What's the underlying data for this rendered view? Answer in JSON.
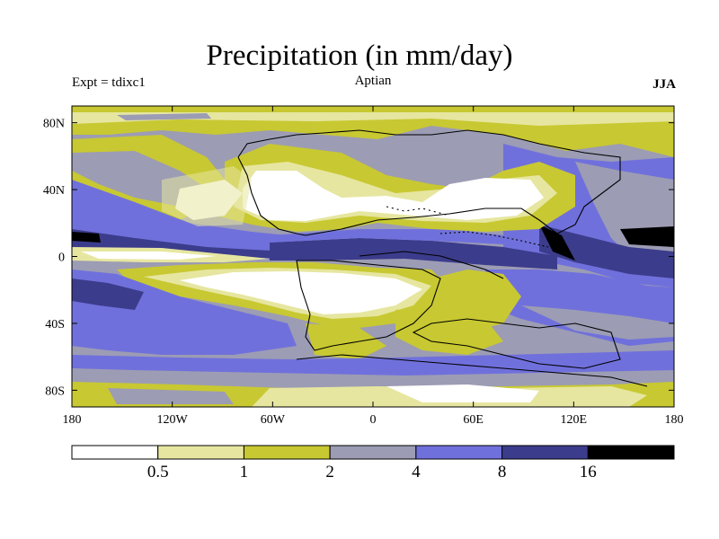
{
  "title": "Precipitation (in mm/day)",
  "experiment_label": "Expt = tdixc1",
  "subtitle": "Aptian",
  "season": "JJA",
  "map": {
    "projection": "cylindrical-equidistant",
    "lon_range": [
      -180,
      180
    ],
    "lat_range": [
      -90,
      90
    ],
    "lon_ticks": [
      "180",
      "120W",
      "60W",
      "0",
      "60E",
      "120E",
      "180"
    ],
    "lat_ticks": [
      "80N",
      "40N",
      "0",
      "40S",
      "80S"
    ],
    "lon_tick_values": [
      -180,
      -120,
      -60,
      0,
      60,
      120,
      180
    ],
    "lat_tick_values": [
      80,
      40,
      0,
      -40,
      -80
    ]
  },
  "colorbar": {
    "levels": [
      "0.5",
      "1",
      "2",
      "4",
      "8",
      "16"
    ],
    "colors": [
      "#ffffff",
      "#e6e6a0",
      "#c8c832",
      "#9c9cb4",
      "#7070dc",
      "#3c3c8c",
      "#000000"
    ]
  }
}
